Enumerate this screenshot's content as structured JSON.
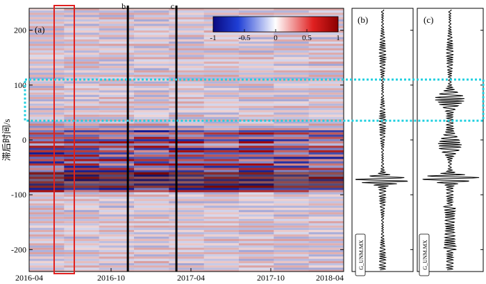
{
  "chart_data": [
    {
      "type": "heatmap",
      "panel_label": "(a)",
      "ylabel": "滞后时间/s",
      "ylim": [
        -240,
        240
      ],
      "y_ticks": [
        200,
        100,
        0,
        -100,
        -200
      ],
      "x_ticks": [
        "2016-04",
        "2016-10",
        "2017-04",
        "2017-10",
        "2018-04"
      ],
      "colorbar": {
        "min": -1,
        "max": 1,
        "ticks": [
          "-1",
          "-0.5",
          "0",
          "0.5",
          "1"
        ],
        "colors": [
          "#0a0a80",
          "#ffffff",
          "#8b0000"
        ]
      },
      "markers": [
        {
          "label": "b",
          "date_fraction": 0.21
        },
        {
          "label": "c",
          "date_fraction": 0.36
        }
      ],
      "highlight_box_color": "#e02020",
      "lag_window_box": {
        "lag_top": 110,
        "lag_bottom": 35,
        "color": "#20d0e0"
      },
      "strong_band_lags": [
        -62,
        -72,
        -82,
        8,
        -20,
        -45
      ]
    },
    {
      "type": "line",
      "panel_label": "(b)",
      "station_label": "G_UNM.MX",
      "ylim": [
        -240,
        240
      ],
      "peak_lag": -73
    },
    {
      "type": "line",
      "panel_label": "(c)",
      "station_label": "G_UNM.MX",
      "ylim": [
        -240,
        240
      ],
      "peak_lag": -70
    }
  ]
}
